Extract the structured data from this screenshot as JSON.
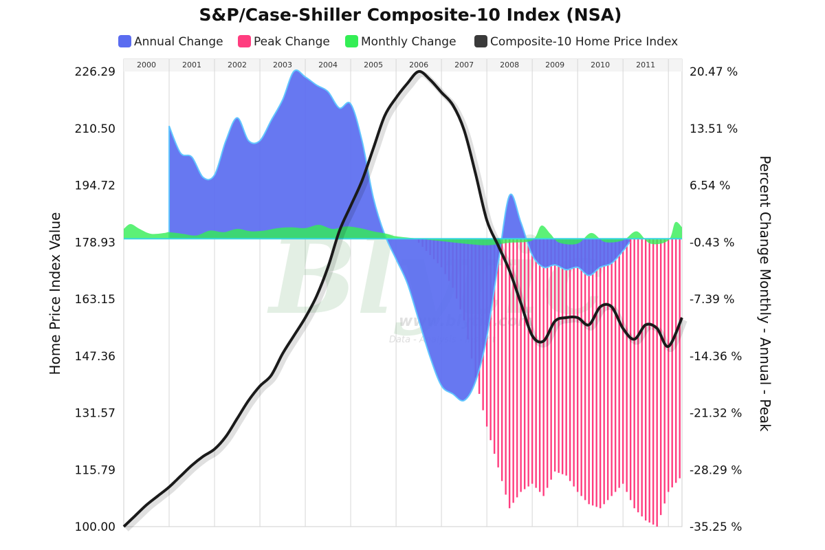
{
  "chart_data": {
    "type": "area",
    "title": "S&P/Case-Shiller Composite-10 Index (NSA)",
    "legend": [
      "Annual Change",
      "Peak Change",
      "Monthly Change",
      "Composite-10 Home Price Index"
    ],
    "legend_position": "top",
    "ylabel_left": "Home Price Index Value",
    "ylabel_right": "Percent Change Monthly - Annual - Peak",
    "left_ticks": [
      "226.29",
      "210.50",
      "194.72",
      "178.93",
      "163.15",
      "147.36",
      "131.57",
      "115.79",
      "100.00"
    ],
    "right_ticks": [
      "20.47 %",
      "13.51 %",
      "6.54 %",
      "-0.43 %",
      "-7.39 %",
      "-14.36 %",
      "-21.32 %",
      "-28.29 %",
      "-35.25 %"
    ],
    "left_ylim": [
      100.0,
      226.29
    ],
    "right_ylim": [
      -35.25,
      20.47
    ],
    "x_years": [
      "2000",
      "2001",
      "2002",
      "2003",
      "2004",
      "2005",
      "2006",
      "2007",
      "2008",
      "2009",
      "2010",
      "2011"
    ],
    "xlim": [
      2000.0,
      2012.3
    ],
    "grid": true,
    "colors": {
      "annual": "#5a6cf0",
      "annual_line": "#62c6ff",
      "peak": "#ff3d7f",
      "monthly": "#33ee55",
      "index": "#1a1a1a"
    },
    "series": [
      {
        "name": "Composite-10 Home Price Index",
        "axis": "left",
        "kind": "line",
        "points": [
          [
            2000.0,
            100.0
          ],
          [
            2000.25,
            103.0
          ],
          [
            2000.5,
            106.0
          ],
          [
            2000.75,
            108.5
          ],
          [
            2001.0,
            111.0
          ],
          [
            2001.25,
            114.0
          ],
          [
            2001.5,
            117.0
          ],
          [
            2001.75,
            119.5
          ],
          [
            2002.0,
            121.5
          ],
          [
            2002.25,
            125.0
          ],
          [
            2002.5,
            130.0
          ],
          [
            2002.75,
            135.0
          ],
          [
            2003.0,
            139.0
          ],
          [
            2003.25,
            142.0
          ],
          [
            2003.5,
            148.0
          ],
          [
            2003.75,
            153.0
          ],
          [
            2004.0,
            158.0
          ],
          [
            2004.25,
            164.0
          ],
          [
            2004.5,
            172.0
          ],
          [
            2004.75,
            182.0
          ],
          [
            2005.0,
            189.0
          ],
          [
            2005.25,
            196.0
          ],
          [
            2005.5,
            205.0
          ],
          [
            2005.75,
            214.0
          ],
          [
            2006.0,
            219.0
          ],
          [
            2006.25,
            223.0
          ],
          [
            2006.5,
            226.29
          ],
          [
            2006.75,
            224.0
          ],
          [
            2007.0,
            220.5
          ],
          [
            2007.25,
            217.0
          ],
          [
            2007.5,
            210.0
          ],
          [
            2007.75,
            198.0
          ],
          [
            2008.0,
            185.0
          ],
          [
            2008.25,
            178.0
          ],
          [
            2008.5,
            171.0
          ],
          [
            2008.75,
            162.0
          ],
          [
            2009.0,
            153.0
          ],
          [
            2009.25,
            151.5
          ],
          [
            2009.5,
            157.0
          ],
          [
            2009.75,
            158.0
          ],
          [
            2010.0,
            158.0
          ],
          [
            2010.25,
            156.0
          ],
          [
            2010.5,
            161.0
          ],
          [
            2010.75,
            161.0
          ],
          [
            2011.0,
            155.0
          ],
          [
            2011.25,
            152.0
          ],
          [
            2011.5,
            156.0
          ],
          [
            2011.75,
            155.0
          ],
          [
            2012.0,
            150.0
          ],
          [
            2012.3,
            158.0
          ]
        ]
      },
      {
        "name": "Annual Change",
        "axis": "right",
        "kind": "area",
        "points": [
          [
            2001.0,
            0.0
          ],
          [
            2001.0,
            13.8
          ],
          [
            2001.25,
            10.5
          ],
          [
            2001.5,
            10.0
          ],
          [
            2001.75,
            7.5
          ],
          [
            2002.0,
            7.8
          ],
          [
            2002.25,
            12.0
          ],
          [
            2002.5,
            14.8
          ],
          [
            2002.75,
            12.0
          ],
          [
            2003.0,
            12.0
          ],
          [
            2003.25,
            14.5
          ],
          [
            2003.5,
            17.0
          ],
          [
            2003.75,
            20.5
          ],
          [
            2004.0,
            19.8
          ],
          [
            2004.25,
            18.8
          ],
          [
            2004.5,
            18.0
          ],
          [
            2004.75,
            16.0
          ],
          [
            2005.0,
            16.5
          ],
          [
            2005.25,
            12.0
          ],
          [
            2005.5,
            5.0
          ],
          [
            2005.75,
            0.5
          ],
          [
            2006.0,
            -2.5
          ],
          [
            2006.25,
            -5.5
          ],
          [
            2006.5,
            -10.0
          ],
          [
            2006.75,
            -14.5
          ],
          [
            2007.0,
            -18.0
          ],
          [
            2007.25,
            -19.0
          ],
          [
            2007.5,
            -19.8
          ],
          [
            2007.75,
            -17.5
          ],
          [
            2008.0,
            -12.0
          ],
          [
            2008.25,
            -3.0
          ],
          [
            2008.5,
            5.3
          ],
          [
            2008.75,
            2.0
          ],
          [
            2009.0,
            -2.0
          ],
          [
            2009.25,
            -3.5
          ],
          [
            2009.5,
            -3.2
          ],
          [
            2009.75,
            -3.8
          ],
          [
            2010.0,
            -3.5
          ],
          [
            2010.25,
            -4.5
          ],
          [
            2010.5,
            -3.5
          ],
          [
            2010.75,
            -3.0
          ],
          [
            2011.0,
            -1.5
          ],
          [
            2011.15,
            -0.4
          ]
        ]
      },
      {
        "name": "Peak Change",
        "axis": "right",
        "kind": "bars",
        "points": [
          [
            2006.5,
            -0.5
          ],
          [
            2006.75,
            -2.0
          ],
          [
            2007.0,
            -3.5
          ],
          [
            2007.25,
            -6.0
          ],
          [
            2007.5,
            -10.0
          ],
          [
            2007.75,
            -17.0
          ],
          [
            2008.0,
            -23.0
          ],
          [
            2008.25,
            -28.0
          ],
          [
            2008.5,
            -33.0
          ],
          [
            2008.75,
            -31.0
          ],
          [
            2009.0,
            -30.0
          ],
          [
            2009.25,
            -31.5
          ],
          [
            2009.5,
            -28.5
          ],
          [
            2009.75,
            -29.0
          ],
          [
            2010.0,
            -31.0
          ],
          [
            2010.25,
            -32.5
          ],
          [
            2010.5,
            -33.0
          ],
          [
            2010.75,
            -31.5
          ],
          [
            2011.0,
            -30.0
          ],
          [
            2011.25,
            -33.0
          ],
          [
            2011.5,
            -34.5
          ],
          [
            2011.75,
            -35.25
          ],
          [
            2012.0,
            -31.0
          ],
          [
            2012.3,
            -29.0
          ]
        ]
      },
      {
        "name": "Monthly Change",
        "axis": "right",
        "kind": "area",
        "points": [
          [
            2000.0,
            1.2
          ],
          [
            2000.15,
            1.8
          ],
          [
            2000.35,
            1.2
          ],
          [
            2000.6,
            0.6
          ],
          [
            2000.9,
            0.7
          ],
          [
            2001.0,
            0.8
          ],
          [
            2001.3,
            0.6
          ],
          [
            2001.6,
            0.4
          ],
          [
            2001.9,
            1.0
          ],
          [
            2002.2,
            0.8
          ],
          [
            2002.5,
            1.2
          ],
          [
            2002.8,
            0.9
          ],
          [
            2003.1,
            1.0
          ],
          [
            2003.4,
            1.3
          ],
          [
            2003.7,
            1.4
          ],
          [
            2004.0,
            1.3
          ],
          [
            2004.3,
            1.7
          ],
          [
            2004.6,
            1.2
          ],
          [
            2004.9,
            1.5
          ],
          [
            2005.2,
            1.3
          ],
          [
            2005.5,
            0.9
          ],
          [
            2005.8,
            0.6
          ],
          [
            2006.0,
            0.3
          ],
          [
            2006.5,
            0.0
          ],
          [
            2007.0,
            -0.3
          ],
          [
            2007.5,
            -0.6
          ],
          [
            2008.0,
            -0.8
          ],
          [
            2008.5,
            -0.5
          ],
          [
            2009.0,
            -0.2
          ],
          [
            2009.2,
            1.6
          ],
          [
            2009.4,
            0.6
          ],
          [
            2009.6,
            -0.5
          ],
          [
            2010.0,
            -0.6
          ],
          [
            2010.3,
            0.7
          ],
          [
            2010.6,
            -0.4
          ],
          [
            2011.0,
            -0.2
          ],
          [
            2011.3,
            0.9
          ],
          [
            2011.6,
            -0.6
          ],
          [
            2012.0,
            -0.2
          ],
          [
            2012.15,
            2.0
          ],
          [
            2012.3,
            1.4
          ]
        ]
      }
    ]
  },
  "watermark": {
    "logo_text": "Blytic",
    "url": "www.blytic.com",
    "tagline": "Data - Analysis - Insight"
  }
}
